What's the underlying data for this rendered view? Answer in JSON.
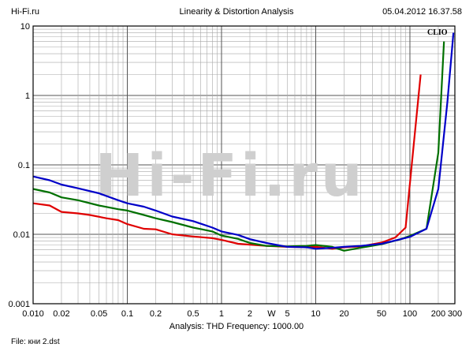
{
  "header": {
    "left": "Hi-Fi.ru",
    "title": "Linearity & Distortion Analysis",
    "datetime": "05.04.2012 16.37.58"
  },
  "footer": {
    "analysis": "Analysis: THD   Frequency: 1000.00",
    "file": "File: кни 2.dst"
  },
  "logo_text": "CLIO",
  "watermark": "Hi-Fi.ru",
  "chart_data": {
    "type": "line",
    "title": "Linearity & Distortion Analysis",
    "x_scale": "log",
    "y_scale": "log",
    "xlim": [
      0.01,
      300
    ],
    "ylim": [
      0.001,
      10
    ],
    "grid": true,
    "x_ticks": [
      {
        "value": 0.01,
        "label": "0.010"
      },
      {
        "value": 0.02,
        "label": "0.02"
      },
      {
        "value": 0.05,
        "label": "0.05"
      },
      {
        "value": 0.1,
        "label": "0.1"
      },
      {
        "value": 0.2,
        "label": "0.2"
      },
      {
        "value": 0.5,
        "label": "0.5"
      },
      {
        "value": 1,
        "label": "1"
      },
      {
        "value": 2,
        "label": "2"
      },
      {
        "value": 3.4,
        "label": "W"
      },
      {
        "value": 5,
        "label": "5"
      },
      {
        "value": 10,
        "label": "10"
      },
      {
        "value": 20,
        "label": "20"
      },
      {
        "value": 50,
        "label": "50"
      },
      {
        "value": 100,
        "label": "100"
      },
      {
        "value": 200,
        "label": "200"
      },
      {
        "value": 300,
        "label": "300"
      }
    ],
    "y_ticks": [
      {
        "value": 10,
        "label": "10"
      },
      {
        "value": 1,
        "label": "1"
      },
      {
        "value": 0.1,
        "label": "0.1"
      },
      {
        "value": 0.01,
        "label": "0.01"
      },
      {
        "value": 0.001,
        "label": "0.001"
      }
    ],
    "series": [
      {
        "color": "#e00000",
        "points": [
          [
            0.01,
            0.028
          ],
          [
            0.015,
            0.026
          ],
          [
            0.02,
            0.021
          ],
          [
            0.03,
            0.02
          ],
          [
            0.04,
            0.019
          ],
          [
            0.06,
            0.017
          ],
          [
            0.08,
            0.016
          ],
          [
            0.1,
            0.014
          ],
          [
            0.15,
            0.012
          ],
          [
            0.2,
            0.0118
          ],
          [
            0.3,
            0.01
          ],
          [
            0.5,
            0.0093
          ],
          [
            0.8,
            0.0088
          ],
          [
            1,
            0.0083
          ],
          [
            1.5,
            0.0073
          ],
          [
            2,
            0.0071
          ],
          [
            3,
            0.0068
          ],
          [
            5,
            0.0066
          ],
          [
            8,
            0.0065
          ],
          [
            10,
            0.0066
          ],
          [
            15,
            0.0062
          ],
          [
            20,
            0.0065
          ],
          [
            30,
            0.0067
          ],
          [
            50,
            0.0076
          ],
          [
            70,
            0.009
          ],
          [
            90,
            0.0125
          ],
          [
            110,
            0.2
          ],
          [
            130,
            2.0
          ]
        ]
      },
      {
        "color": "#007000",
        "points": [
          [
            0.01,
            0.045
          ],
          [
            0.015,
            0.04
          ],
          [
            0.02,
            0.034
          ],
          [
            0.03,
            0.031
          ],
          [
            0.05,
            0.026
          ],
          [
            0.08,
            0.023
          ],
          [
            0.1,
            0.022
          ],
          [
            0.15,
            0.019
          ],
          [
            0.2,
            0.017
          ],
          [
            0.3,
            0.015
          ],
          [
            0.5,
            0.0125
          ],
          [
            0.8,
            0.011
          ],
          [
            1,
            0.0096
          ],
          [
            1.5,
            0.0086
          ],
          [
            2,
            0.0075
          ],
          [
            3,
            0.0068
          ],
          [
            5,
            0.0067
          ],
          [
            8,
            0.0068
          ],
          [
            10,
            0.007
          ],
          [
            15,
            0.0066
          ],
          [
            20,
            0.0058
          ],
          [
            30,
            0.0064
          ],
          [
            50,
            0.0072
          ],
          [
            80,
            0.0085
          ],
          [
            100,
            0.0095
          ],
          [
            150,
            0.012
          ],
          [
            200,
            0.15
          ],
          [
            230,
            6.0
          ]
        ]
      },
      {
        "color": "#0000c8",
        "points": [
          [
            0.01,
            0.068
          ],
          [
            0.015,
            0.06
          ],
          [
            0.02,
            0.052
          ],
          [
            0.03,
            0.046
          ],
          [
            0.05,
            0.039
          ],
          [
            0.08,
            0.031
          ],
          [
            0.1,
            0.028
          ],
          [
            0.15,
            0.025
          ],
          [
            0.2,
            0.022
          ],
          [
            0.3,
            0.018
          ],
          [
            0.5,
            0.0155
          ],
          [
            0.8,
            0.0125
          ],
          [
            1,
            0.011
          ],
          [
            1.5,
            0.0098
          ],
          [
            2,
            0.0085
          ],
          [
            3,
            0.0075
          ],
          [
            5,
            0.0066
          ],
          [
            8,
            0.0065
          ],
          [
            10,
            0.0062
          ],
          [
            15,
            0.0064
          ],
          [
            20,
            0.0066
          ],
          [
            30,
            0.0068
          ],
          [
            50,
            0.0073
          ],
          [
            80,
            0.0085
          ],
          [
            100,
            0.0092
          ],
          [
            150,
            0.012
          ],
          [
            200,
            0.045
          ],
          [
            250,
            0.8
          ],
          [
            290,
            8.0
          ]
        ]
      }
    ]
  }
}
